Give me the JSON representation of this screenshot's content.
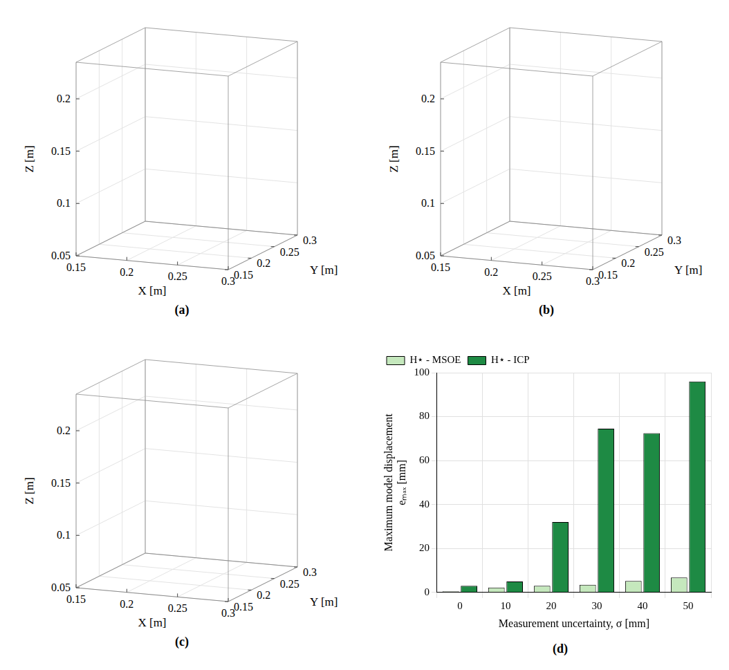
{
  "chart_data": [
    {
      "panel": "(a)",
      "type": "scatter3d",
      "xlabel": "X [m]",
      "ylabel": "Y [m]",
      "zlabel": "Z [m]",
      "xlim": [
        0.15,
        0.3
      ],
      "ylim": [
        0.15,
        0.3
      ],
      "zlim": [
        0.05,
        0.235
      ],
      "xticks": [
        0.15,
        0.2,
        0.25,
        0.3
      ],
      "yticks": [
        0.15,
        0.2,
        0.25,
        0.3
      ],
      "zticks": [
        0.05,
        0.1,
        0.15,
        0.2
      ],
      "grid": true
    },
    {
      "panel": "(b)",
      "type": "scatter3d",
      "xlabel": "X [m]",
      "ylabel": "Y [m]",
      "zlabel": "Z [m]",
      "xlim": [
        0.15,
        0.3
      ],
      "ylim": [
        0.15,
        0.3
      ],
      "zlim": [
        0.05,
        0.235
      ],
      "xticks": [
        0.15,
        0.2,
        0.25,
        0.3
      ],
      "yticks": [
        0.15,
        0.2,
        0.25,
        0.3
      ],
      "zticks": [
        0.05,
        0.1,
        0.15,
        0.2
      ],
      "grid": true
    },
    {
      "panel": "(c)",
      "type": "scatter3d",
      "xlabel": "X [m]",
      "ylabel": "Y [m]",
      "zlabel": "Z [m]",
      "xlim": [
        0.15,
        0.3
      ],
      "ylim": [
        0.15,
        0.3
      ],
      "zlim": [
        0.05,
        0.235
      ],
      "xticks": [
        0.15,
        0.2,
        0.25,
        0.3
      ],
      "yticks": [
        0.15,
        0.2,
        0.25,
        0.3
      ],
      "zticks": [
        0.05,
        0.1,
        0.15,
        0.2
      ],
      "grid": true
    },
    {
      "panel": "(d)",
      "type": "bar",
      "xlabel": "Measurement uncertainty, σ [mm]",
      "ylabel": [
        "Maximum model displacement",
        "eₘₐₓ [mm]"
      ],
      "categories": [
        0,
        10,
        20,
        30,
        40,
        50
      ],
      "series": [
        {
          "name": "H⋆ - MSOE",
          "color": "#c5e8bd",
          "values": [
            0.5,
            2.2,
            3,
            3.5,
            5.2,
            6.8
          ]
        },
        {
          "name": "H⋆ - ICP",
          "color": "#1e8a44",
          "values": [
            3,
            5,
            32,
            74.5,
            72.5,
            96
          ]
        }
      ],
      "ylim": [
        0,
        100
      ],
      "yticks": [
        0,
        20,
        40,
        60,
        80,
        100
      ],
      "grid": true,
      "legend": "top left"
    }
  ]
}
